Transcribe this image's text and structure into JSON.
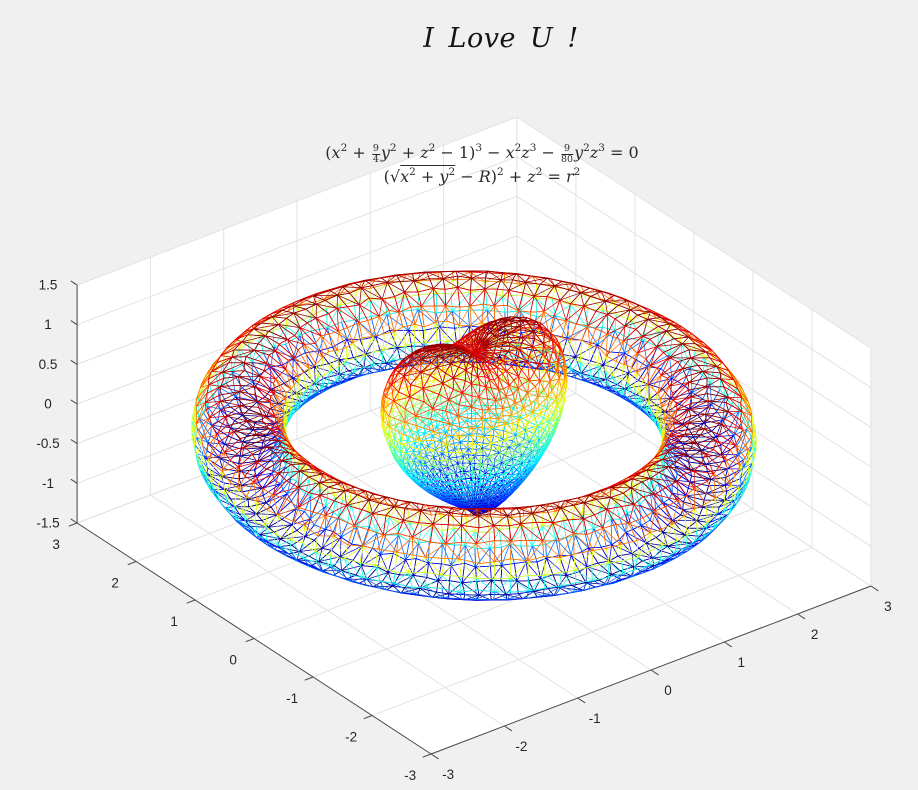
{
  "title": "I Love U !",
  "figure": {
    "background": "#f0f0f0",
    "wall_color": "#ffffff",
    "grid_color": "#e2e2e2",
    "axis_color": "#474747",
    "label_color": "#262626"
  },
  "chart_data": {
    "type": "surface",
    "title": "I Love U !",
    "subtitle_equations": [
      "(x^2 + 9/4 y^2 + z^2 - 1)^3 - x^2 z^3 - 9/80 y^2 z^3 = 0",
      "(sqrt(x^2 + y^2) - R)^2 + z^2 = r^2"
    ],
    "colormap": "jet",
    "mesh_style": "triangular wireframe mesh",
    "view": {
      "azimuth_deg": -37.5,
      "elevation_deg": 30,
      "projection": "orthographic"
    },
    "grid": true,
    "axes": {
      "x": {
        "range": [
          -3,
          3
        ],
        "ticks": [
          -3,
          -2,
          -1,
          0,
          1,
          2,
          3
        ]
      },
      "y": {
        "range": [
          -3,
          3
        ],
        "ticks": [
          -3,
          -2,
          -1,
          0,
          1,
          2,
          3
        ]
      },
      "z": {
        "range": [
          -1.5,
          1.5
        ],
        "ticks": [
          -1.5,
          -1,
          -0.5,
          0,
          0.5,
          1,
          1.5
        ]
      }
    },
    "surfaces": [
      {
        "id": "heart",
        "description": "Taubin heart surface centered at origin",
        "equation": "(x^2 + (9/4)y^2 + z^2 - 1)^3 - x^2 z^3 - (9/80) y^2 z^3 = 0",
        "z_extent": [
          -1,
          1.26
        ],
        "color_by": "z, jet colormap normalized per surface"
      },
      {
        "id": "torus",
        "description": "ring torus surrounding the heart",
        "equation": "(sqrt(x^2 + y^2) - R)^2 + z^2 = r^2",
        "R": 2.5,
        "r": 0.5,
        "z_extent": [
          -0.5,
          0.5
        ],
        "color_by": "z, jet colormap normalized per surface"
      }
    ]
  },
  "equation_tokens": {
    "line1": [
      {
        "t": "("
      },
      {
        "v": "x"
      },
      {
        "sup": "2"
      },
      {
        "t": " + "
      },
      {
        "frac": [
          "9",
          "4"
        ]
      },
      {
        "v": "y"
      },
      {
        "sup": "2"
      },
      {
        "t": " + "
      },
      {
        "v": "z"
      },
      {
        "sup": "2"
      },
      {
        "t": " − 1)"
      },
      {
        "sup": "3"
      },
      {
        "t": " − "
      },
      {
        "v": "x"
      },
      {
        "sup": "2"
      },
      {
        "v": "z"
      },
      {
        "sup": "3"
      },
      {
        "t": " − "
      },
      {
        "frac": [
          "9",
          "80"
        ]
      },
      {
        "v": "y"
      },
      {
        "sup": "2"
      },
      {
        "v": "z"
      },
      {
        "sup": "3"
      },
      {
        "t": " = 0"
      }
    ],
    "line2": [
      {
        "t": "("
      },
      {
        "sqrt": [
          {
            "v": "x"
          },
          {
            "sup": "2"
          },
          {
            "t": " + "
          },
          {
            "v": "y"
          },
          {
            "sup": "2"
          }
        ]
      },
      {
        "t": " − "
      },
      {
        "v": "R"
      },
      {
        "t": ")"
      },
      {
        "sup": "2"
      },
      {
        "t": " + "
      },
      {
        "v": "z"
      },
      {
        "sup": "2"
      },
      {
        "t": " = "
      },
      {
        "v": "r"
      },
      {
        "sup": "2"
      }
    ]
  }
}
